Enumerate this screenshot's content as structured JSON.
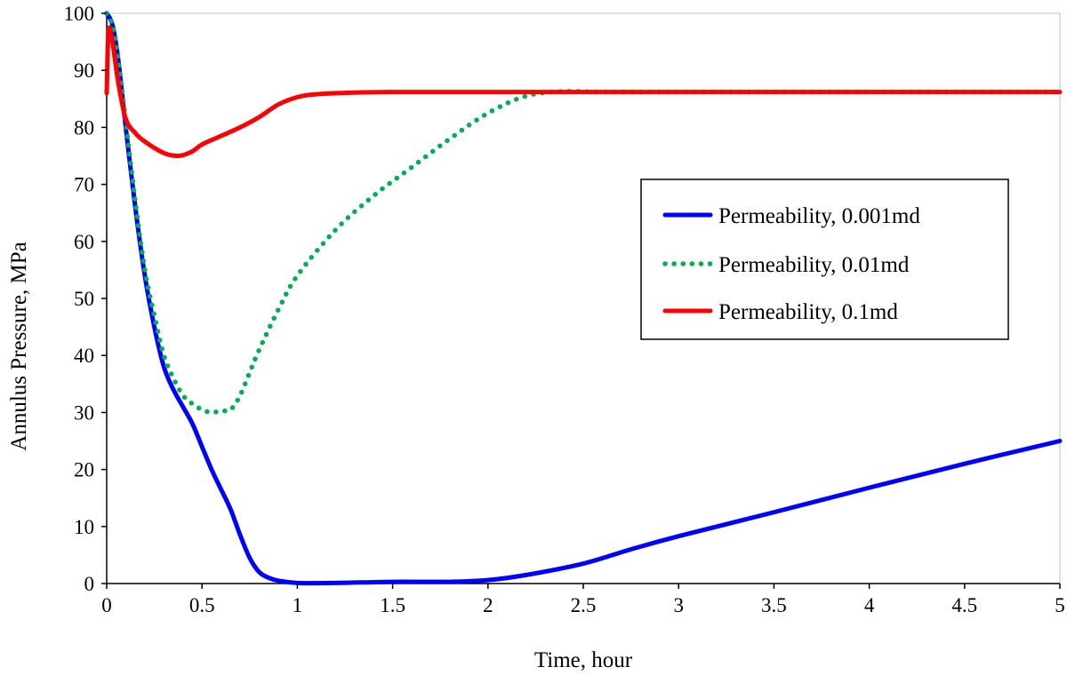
{
  "chart_data": {
    "type": "line",
    "xlabel": "Time, hour",
    "ylabel": "Annulus Pressure, MPa",
    "xlim": [
      0,
      5
    ],
    "ylim": [
      0,
      100
    ],
    "xticks": [
      0,
      0.5,
      1,
      1.5,
      2,
      2.5,
      3,
      3.5,
      4,
      4.5,
      5
    ],
    "xtick_labels": [
      "0",
      "0.5",
      "1",
      "1.5",
      "2",
      "2.5",
      "3",
      "3.5",
      "4",
      "4.5",
      "5"
    ],
    "yticks": [
      0,
      10,
      20,
      30,
      40,
      50,
      60,
      70,
      80,
      90,
      100
    ],
    "ytick_labels": [
      "0",
      "10",
      "20",
      "30",
      "40",
      "50",
      "60",
      "70",
      "80",
      "90",
      "100"
    ],
    "grid": false,
    "legend_position": "center-right",
    "series": [
      {
        "name": "Permeability, 0.001md",
        "color": "#0000ff",
        "style": "solid",
        "points": [
          [
            0,
            100
          ],
          [
            0.03,
            98
          ],
          [
            0.06,
            92
          ],
          [
            0.1,
            80
          ],
          [
            0.15,
            66
          ],
          [
            0.2,
            54
          ],
          [
            0.25,
            45
          ],
          [
            0.3,
            38
          ],
          [
            0.35,
            34
          ],
          [
            0.4,
            31
          ],
          [
            0.45,
            28
          ],
          [
            0.5,
            24
          ],
          [
            0.55,
            20
          ],
          [
            0.6,
            16.5
          ],
          [
            0.65,
            13
          ],
          [
            0.7,
            8.5
          ],
          [
            0.75,
            4.5
          ],
          [
            0.8,
            2
          ],
          [
            0.85,
            1
          ],
          [
            0.9,
            0.5
          ],
          [
            1.0,
            0.1
          ],
          [
            1.2,
            0.1
          ],
          [
            1.5,
            0.3
          ],
          [
            1.8,
            0.3
          ],
          [
            2.0,
            0.6
          ],
          [
            2.2,
            1.5
          ],
          [
            2.5,
            3.5
          ],
          [
            2.75,
            6
          ],
          [
            3.0,
            8.3
          ],
          [
            3.5,
            12.5
          ],
          [
            4.0,
            16.8
          ],
          [
            4.5,
            21
          ],
          [
            5.0,
            25
          ]
        ]
      },
      {
        "name": "Permeability, 0.01md",
        "color": "#00b050",
        "style": "dotted",
        "points": [
          [
            0,
            100
          ],
          [
            0.03,
            98
          ],
          [
            0.06,
            92
          ],
          [
            0.1,
            81
          ],
          [
            0.15,
            67
          ],
          [
            0.2,
            55
          ],
          [
            0.25,
            47
          ],
          [
            0.3,
            40
          ],
          [
            0.35,
            36
          ],
          [
            0.4,
            33
          ],
          [
            0.45,
            31.5
          ],
          [
            0.5,
            30.5
          ],
          [
            0.55,
            30
          ],
          [
            0.6,
            30.3
          ],
          [
            0.65,
            30.5
          ],
          [
            0.7,
            33
          ],
          [
            0.75,
            37
          ],
          [
            0.8,
            41
          ],
          [
            0.9,
            48
          ],
          [
            1.0,
            54
          ],
          [
            1.2,
            62
          ],
          [
            1.4,
            68
          ],
          [
            1.6,
            73
          ],
          [
            1.8,
            78
          ],
          [
            2.0,
            82.5
          ],
          [
            2.2,
            85.5
          ],
          [
            2.4,
            86.3
          ],
          [
            2.6,
            86.2
          ],
          [
            3.0,
            86.2
          ],
          [
            4.0,
            86.2
          ],
          [
            5.0,
            86.2
          ]
        ]
      },
      {
        "name": "Permeability, 0.1md",
        "color": "#ff0000",
        "style": "solid",
        "points": [
          [
            0,
            86
          ],
          [
            0.01,
            97
          ],
          [
            0.03,
            95
          ],
          [
            0.06,
            88
          ],
          [
            0.1,
            81.5
          ],
          [
            0.15,
            79
          ],
          [
            0.2,
            77.5
          ],
          [
            0.3,
            75.5
          ],
          [
            0.38,
            75
          ],
          [
            0.45,
            75.8
          ],
          [
            0.5,
            77
          ],
          [
            0.6,
            78.5
          ],
          [
            0.7,
            80
          ],
          [
            0.8,
            81.8
          ],
          [
            0.9,
            84
          ],
          [
            1.0,
            85.3
          ],
          [
            1.1,
            85.8
          ],
          [
            1.3,
            86.1
          ],
          [
            1.5,
            86.2
          ],
          [
            2.0,
            86.2
          ],
          [
            3.0,
            86.2
          ],
          [
            4.0,
            86.2
          ],
          [
            5.0,
            86.2
          ]
        ]
      }
    ]
  }
}
